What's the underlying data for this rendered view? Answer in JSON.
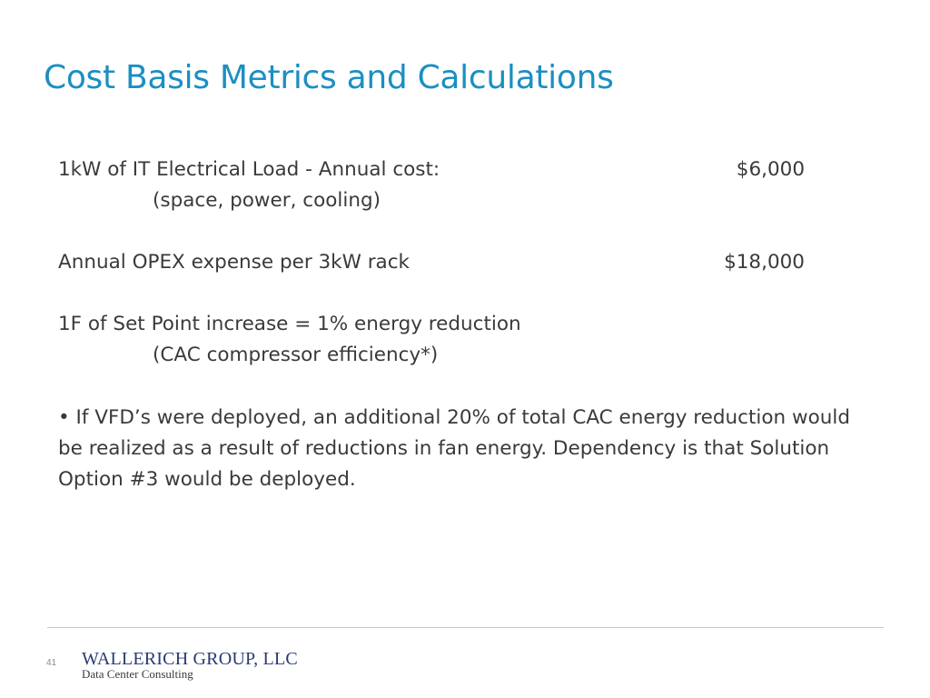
{
  "slide": {
    "title": "Cost Basis Metrics and Calculations",
    "items": [
      {
        "label": "1kW of IT Electrical Load - Annual cost:",
        "amount": "$6,000",
        "note": "(space, power, cooling)"
      },
      {
        "label": "Annual OPEX expense per 3kW rack",
        "amount": "$18,000"
      },
      {
        "label": "1F of Set Point increase = 1% energy reduction",
        "note": "(CAC compressor efficiency*)"
      }
    ],
    "bullet": "• If VFD’s were deployed, an additional 20% of total CAC energy reduction would be realized as a result of reductions in fan energy. Dependency is that Solution Option #3 would be deployed."
  },
  "footer": {
    "page_number": "41",
    "logo_name": "WALLERICH GROUP, LLC",
    "logo_tagline": "Data Center Consulting"
  }
}
